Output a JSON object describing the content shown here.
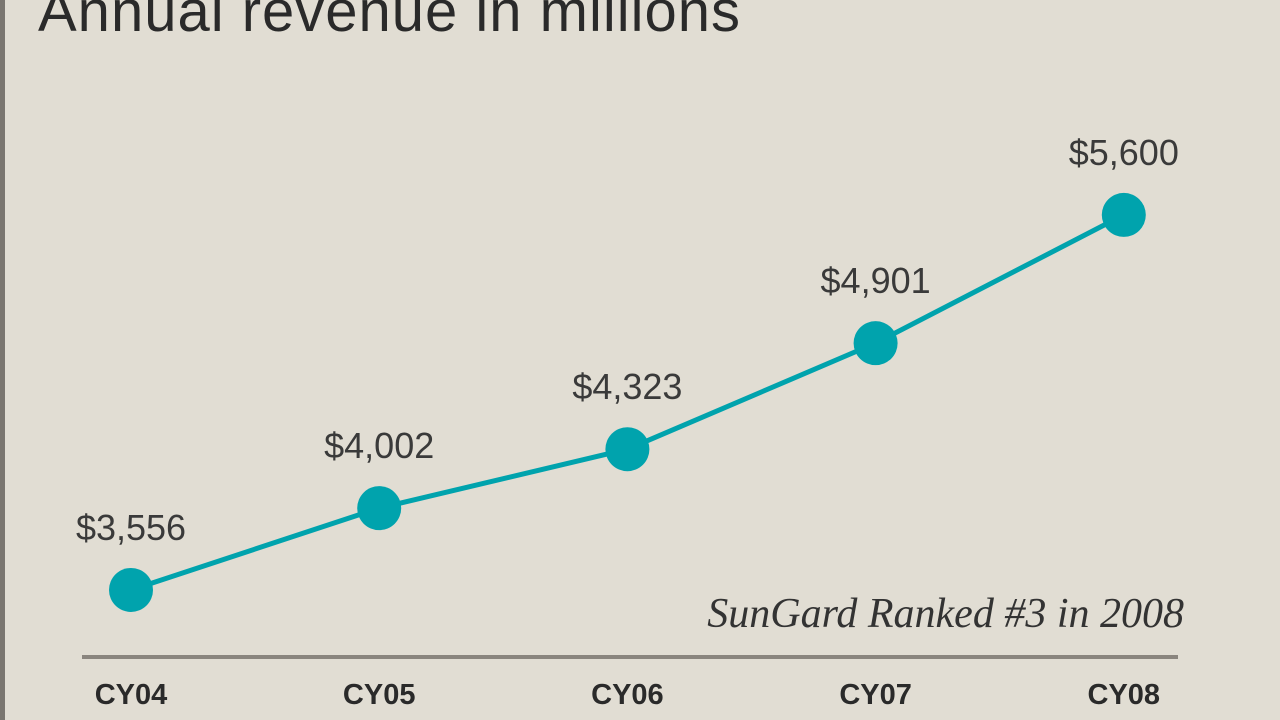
{
  "chart_data": {
    "type": "line",
    "title": "Annual revenue in millions",
    "annotation": "SunGard Ranked #3 in 2008",
    "categories": [
      "CY04",
      "CY05",
      "CY06",
      "CY07",
      "CY08"
    ],
    "values": [
      3556,
      4002,
      4323,
      4901,
      5600
    ],
    "data_labels": [
      "$3,556",
      "$4,002",
      "$4,323",
      "$4,901",
      "$5,600"
    ],
    "grid": false,
    "line_color": "#00a3ad",
    "background_color": "#e1ddd3"
  }
}
